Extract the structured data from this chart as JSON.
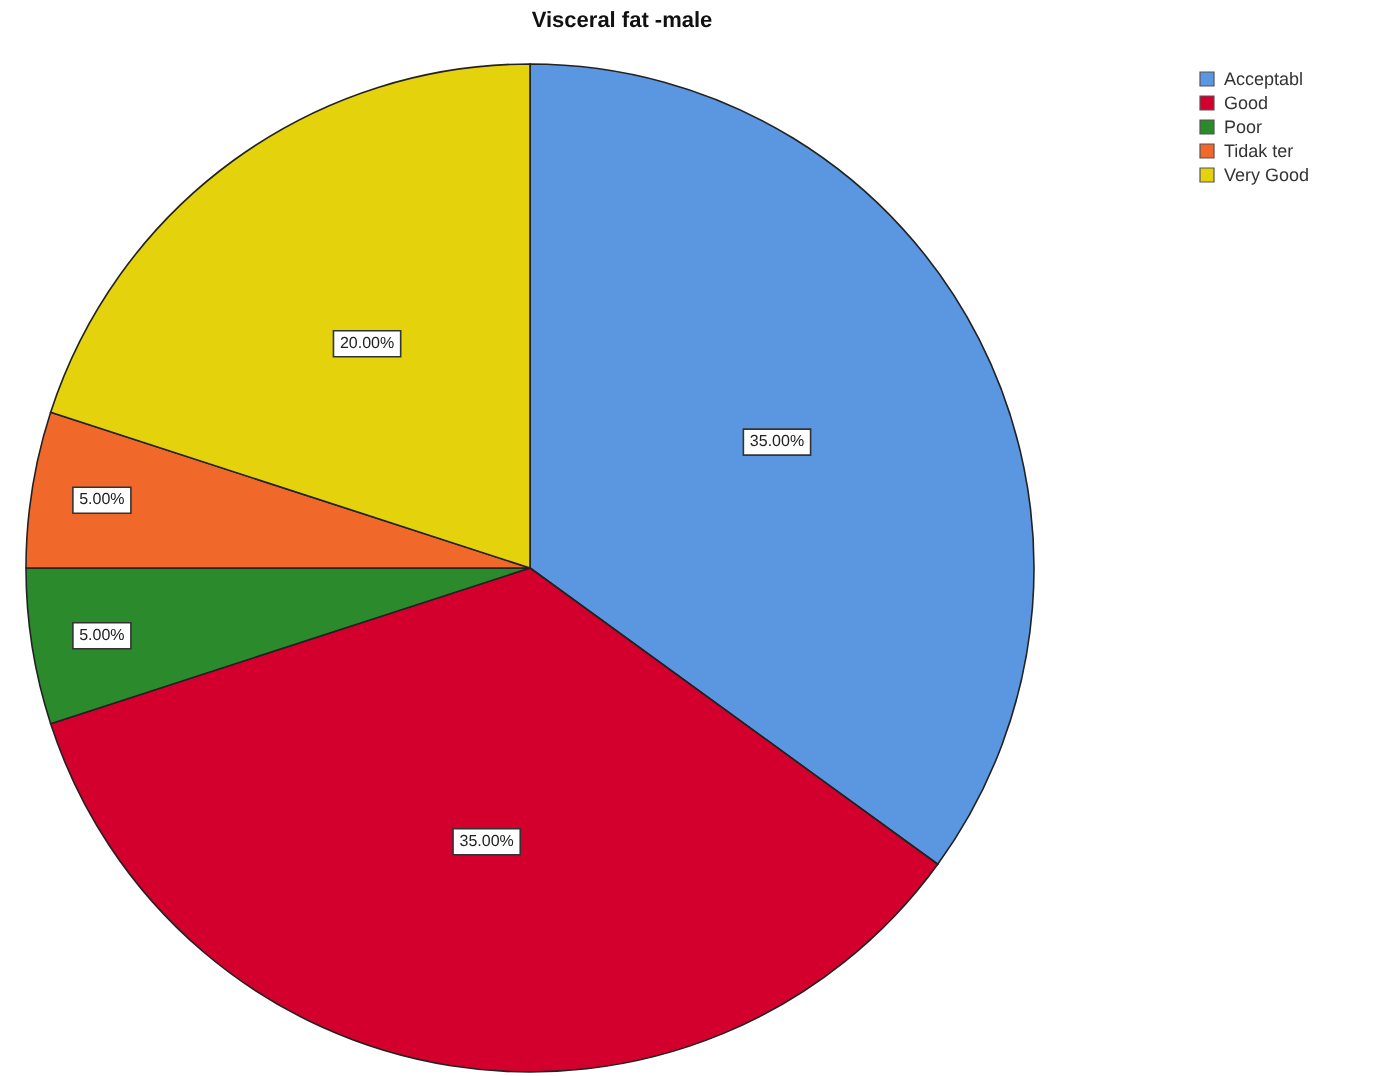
{
  "chart_data": {
    "type": "pie",
    "title": "Visceral fat -male",
    "categories": [
      "Acceptabl",
      "Good",
      "Poor",
      "Tidak ter",
      "Very Good"
    ],
    "values": [
      35,
      35,
      5,
      5,
      20
    ],
    "colors": [
      "#5b96e0",
      "#d3002e",
      "#2b8a2b",
      "#f0692b",
      "#e3d20c"
    ],
    "value_labels": [
      "35.00%",
      "35.00%",
      "5.00%",
      "5.00%",
      "20.00%"
    ],
    "legend": "top right"
  }
}
